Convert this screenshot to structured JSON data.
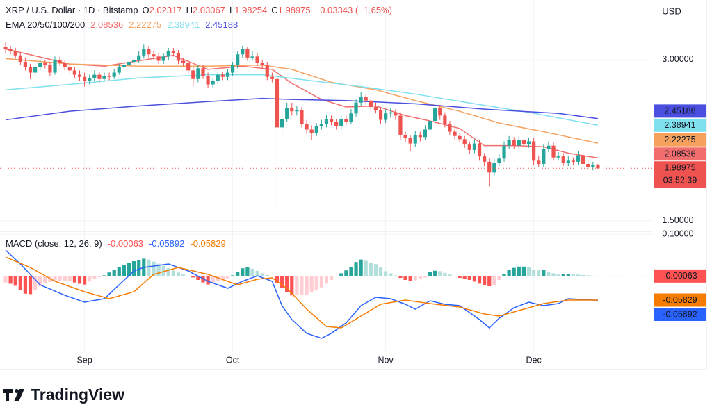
{
  "header": {
    "symbol": "XRP / U.S. Dollar · 1D · Bitstamp",
    "ohlc_labels": [
      "O",
      "H",
      "L",
      "C"
    ],
    "change": "−0.03343 (−1.65%)",
    "ema_label": "EMA 20/50/100/200",
    "macd_label": "MACD (close, 12, 26, 9)"
  },
  "currency": "USD",
  "countdown": "03:52:39",
  "brand": "TradingView",
  "chart_data": [
    {
      "type": "candlestick",
      "up_color": "#26a69a",
      "down_color": "#ef5350",
      "grid": true,
      "xlim": [
        -1.13,
        131
      ],
      "xticks": [
        {
          "value": 16,
          "label": "Sep"
        },
        {
          "value": 46,
          "label": "Oct"
        },
        {
          "value": 77,
          "label": "Nov"
        },
        {
          "value": 107,
          "label": "Dec"
        }
      ],
      "ylim": [
        1.422,
        3.504
      ],
      "yticks": [
        {
          "value": 3.0,
          "label": "3.00000"
        },
        {
          "value": 1.5,
          "label": "1.50000"
        }
      ],
      "candles": [
        [
          3.12,
          3.16,
          3.06,
          3.1
        ],
        [
          3.1,
          3.13,
          3.05,
          3.08
        ],
        [
          3.08,
          3.11,
          3.01,
          3.04
        ],
        [
          3.04,
          3.07,
          2.95,
          2.98
        ],
        [
          2.98,
          3.02,
          2.9,
          2.93
        ],
        [
          2.93,
          2.96,
          2.82,
          2.88
        ],
        [
          2.88,
          2.96,
          2.85,
          2.93
        ],
        [
          2.93,
          3.0,
          2.9,
          2.97
        ],
        [
          2.97,
          3.0,
          2.92,
          2.95
        ],
        [
          2.95,
          2.98,
          2.85,
          2.88
        ],
        [
          2.88,
          3.03,
          2.86,
          3.0
        ],
        [
          3.0,
          3.03,
          2.94,
          2.97
        ],
        [
          2.97,
          3.0,
          2.9,
          2.93
        ],
        [
          2.93,
          2.96,
          2.87,
          2.9
        ],
        [
          2.9,
          2.93,
          2.83,
          2.86
        ],
        [
          2.86,
          2.9,
          2.8,
          2.84
        ],
        [
          2.84,
          2.88,
          2.75,
          2.8
        ],
        [
          2.8,
          2.86,
          2.77,
          2.83
        ],
        [
          2.83,
          2.9,
          2.8,
          2.86
        ],
        [
          2.86,
          2.89,
          2.79,
          2.82
        ],
        [
          2.82,
          2.88,
          2.8,
          2.85
        ],
        [
          2.85,
          2.88,
          2.81,
          2.84
        ],
        [
          2.84,
          2.91,
          2.82,
          2.88
        ],
        [
          2.88,
          2.96,
          2.86,
          2.93
        ],
        [
          2.93,
          2.98,
          2.9,
          2.95
        ],
        [
          2.95,
          3.01,
          2.92,
          2.98
        ],
        [
          2.98,
          3.03,
          2.95,
          3.0
        ],
        [
          3.0,
          3.08,
          2.97,
          3.04
        ],
        [
          3.04,
          3.14,
          3.01,
          3.1
        ],
        [
          3.1,
          3.13,
          3.02,
          3.05
        ],
        [
          3.05,
          3.08,
          3.0,
          3.03
        ],
        [
          3.03,
          3.06,
          2.96,
          2.99
        ],
        [
          2.99,
          3.06,
          2.96,
          3.03
        ],
        [
          3.03,
          3.11,
          3.0,
          3.08
        ],
        [
          3.08,
          3.11,
          3.03,
          3.06
        ],
        [
          3.06,
          3.09,
          2.96,
          2.99
        ],
        [
          2.99,
          3.02,
          2.94,
          2.97
        ],
        [
          2.97,
          3.0,
          2.87,
          2.9
        ],
        [
          2.9,
          2.93,
          2.75,
          2.82
        ],
        [
          2.82,
          2.95,
          2.79,
          2.92
        ],
        [
          2.92,
          2.95,
          2.82,
          2.85
        ],
        [
          2.85,
          2.88,
          2.74,
          2.77
        ],
        [
          2.77,
          2.83,
          2.74,
          2.8
        ],
        [
          2.8,
          2.89,
          2.77,
          2.86
        ],
        [
          2.86,
          2.89,
          2.81,
          2.84
        ],
        [
          2.84,
          2.91,
          2.81,
          2.88
        ],
        [
          2.88,
          2.98,
          2.85,
          2.95
        ],
        [
          2.95,
          3.08,
          2.92,
          3.05
        ],
        [
          3.05,
          3.13,
          3.02,
          3.1
        ],
        [
          3.1,
          3.12,
          2.99,
          3.02
        ],
        [
          3.02,
          3.08,
          2.99,
          3.03
        ],
        [
          3.03,
          3.06,
          2.94,
          2.97
        ],
        [
          2.97,
          3.0,
          2.92,
          2.95
        ],
        [
          2.95,
          2.98,
          2.81,
          2.84
        ],
        [
          2.84,
          2.88,
          2.79,
          2.82
        ],
        [
          2.82,
          2.85,
          1.58,
          2.37
        ],
        [
          2.37,
          2.5,
          2.3,
          2.45
        ],
        [
          2.45,
          2.6,
          2.42,
          2.55
        ],
        [
          2.55,
          2.6,
          2.48,
          2.52
        ],
        [
          2.52,
          2.57,
          2.48,
          2.53
        ],
        [
          2.53,
          2.56,
          2.37,
          2.4
        ],
        [
          2.4,
          2.44,
          2.31,
          2.35
        ],
        [
          2.35,
          2.39,
          2.25,
          2.32
        ],
        [
          2.32,
          2.41,
          2.29,
          2.38
        ],
        [
          2.38,
          2.44,
          2.35,
          2.4
        ],
        [
          2.4,
          2.49,
          2.37,
          2.45
        ],
        [
          2.45,
          2.48,
          2.39,
          2.42
        ],
        [
          2.42,
          2.45,
          2.35,
          2.38
        ],
        [
          2.38,
          2.49,
          2.35,
          2.45
        ],
        [
          2.45,
          2.48,
          2.39,
          2.42
        ],
        [
          2.42,
          2.54,
          2.4,
          2.5
        ],
        [
          2.5,
          2.63,
          2.47,
          2.6
        ],
        [
          2.6,
          2.7,
          2.57,
          2.65
        ],
        [
          2.65,
          2.68,
          2.58,
          2.62
        ],
        [
          2.62,
          2.65,
          2.52,
          2.56
        ],
        [
          2.56,
          2.6,
          2.5,
          2.53
        ],
        [
          2.53,
          2.56,
          2.4,
          2.44
        ],
        [
          2.44,
          2.54,
          2.41,
          2.5
        ],
        [
          2.5,
          2.55,
          2.46,
          2.51
        ],
        [
          2.51,
          2.54,
          2.44,
          2.48
        ],
        [
          2.48,
          2.51,
          2.26,
          2.3
        ],
        [
          2.3,
          2.33,
          2.23,
          2.27
        ],
        [
          2.27,
          2.3,
          2.15,
          2.22
        ],
        [
          2.22,
          2.34,
          2.19,
          2.3
        ],
        [
          2.3,
          2.33,
          2.24,
          2.28
        ],
        [
          2.28,
          2.39,
          2.25,
          2.35
        ],
        [
          2.35,
          2.47,
          2.32,
          2.43
        ],
        [
          2.43,
          2.59,
          2.4,
          2.55
        ],
        [
          2.55,
          2.58,
          2.44,
          2.48
        ],
        [
          2.48,
          2.51,
          2.37,
          2.4
        ],
        [
          2.4,
          2.43,
          2.3,
          2.33
        ],
        [
          2.33,
          2.36,
          2.26,
          2.29
        ],
        [
          2.29,
          2.32,
          2.23,
          2.26
        ],
        [
          2.26,
          2.29,
          2.18,
          2.21
        ],
        [
          2.21,
          2.24,
          2.12,
          2.16
        ],
        [
          2.16,
          2.26,
          2.13,
          2.22
        ],
        [
          2.22,
          2.25,
          2.06,
          2.1
        ],
        [
          2.1,
          2.13,
          2.01,
          2.05
        ],
        [
          2.05,
          2.08,
          1.82,
          1.95
        ],
        [
          1.95,
          2.08,
          1.92,
          2.04
        ],
        [
          2.04,
          2.12,
          2.01,
          2.08
        ],
        [
          2.08,
          2.24,
          2.05,
          2.2
        ],
        [
          2.2,
          2.29,
          2.17,
          2.25
        ],
        [
          2.25,
          2.28,
          2.17,
          2.2
        ],
        [
          2.2,
          2.29,
          2.17,
          2.25
        ],
        [
          2.25,
          2.28,
          2.18,
          2.21
        ],
        [
          2.21,
          2.27,
          2.18,
          2.24
        ],
        [
          2.24,
          2.27,
          2.02,
          2.06
        ],
        [
          2.06,
          2.1,
          2.0,
          2.03
        ],
        [
          2.03,
          2.21,
          2.0,
          2.17
        ],
        [
          2.17,
          2.24,
          2.14,
          2.2
        ],
        [
          2.2,
          2.23,
          2.06,
          2.09
        ],
        [
          2.09,
          2.14,
          2.06,
          2.1
        ],
        [
          2.1,
          2.13,
          2.01,
          2.04
        ],
        [
          2.04,
          2.1,
          2.01,
          2.06
        ],
        [
          2.06,
          2.09,
          2.02,
          2.05
        ],
        [
          2.05,
          2.15,
          2.02,
          2.11
        ],
        [
          2.11,
          2.14,
          2.0,
          2.03
        ],
        [
          2.03,
          2.06,
          1.97,
          2.0
        ],
        [
          2.0,
          2.05,
          1.97,
          2.02
        ],
        [
          2.02317,
          2.03067,
          1.98254,
          1.98975
        ]
      ],
      "series": [
        {
          "color": "#f26d6d",
          "label_text": "#ffffff",
          "x": [
            0,
            13,
            20,
            27,
            34,
            41,
            48,
            54,
            58,
            64,
            69,
            75,
            81,
            86,
            92,
            97,
            103,
            109,
            114,
            120
          ],
          "values": [
            3.1,
            2.96,
            2.94,
            2.99,
            3.04,
            2.91,
            2.94,
            2.91,
            2.78,
            2.63,
            2.56,
            2.57,
            2.48,
            2.43,
            2.36,
            2.2,
            2.2,
            2.19,
            2.13,
            2.08536
          ]
        },
        {
          "color": "#f7a15e",
          "label_text": "#ffffff",
          "x": [
            0,
            13,
            27,
            41,
            52,
            58,
            66,
            75,
            83,
            92,
            100,
            109,
            120
          ],
          "values": [
            3.01,
            2.96,
            2.94,
            2.94,
            2.95,
            2.91,
            2.79,
            2.72,
            2.62,
            2.52,
            2.41,
            2.33,
            2.22275
          ]
        },
        {
          "color": "#80e1ee",
          "label_text": "#131722",
          "x": [
            0,
            13,
            27,
            41,
            52,
            61,
            72,
            83,
            95,
            106,
            120
          ],
          "values": [
            2.72,
            2.77,
            2.83,
            2.86,
            2.86,
            2.81,
            2.75,
            2.68,
            2.59,
            2.51,
            2.38941
          ]
        },
        {
          "color": "#4b4fe0",
          "label_text": "#ffffff",
          "x": [
            0,
            13,
            27,
            41,
            52,
            58,
            69,
            83,
            97,
            112,
            120
          ],
          "values": [
            2.44,
            2.52,
            2.57,
            2.61,
            2.64,
            2.63,
            2.62,
            2.59,
            2.54,
            2.5,
            2.45188
          ]
        }
      ]
    },
    {
      "type": "macd",
      "ylim": [
        -0.18,
        0.1067
      ],
      "yticks": [
        {
          "value": 0.1,
          "label": "0.10000"
        }
      ],
      "histogram": {
        "colors": {
          "rising_positive": "#26a69a",
          "falling_positive": "#b2dfdb",
          "falling_negative": "#ff5252",
          "rising_negative": "#ffcdd2"
        },
        "values": [
          -0.016,
          -0.019,
          -0.024,
          -0.035,
          -0.043,
          -0.044,
          -0.035,
          -0.025,
          -0.018,
          -0.015,
          -0.013,
          -0.013,
          -0.013,
          -0.013,
          -0.016,
          -0.019,
          -0.021,
          -0.014,
          -0.007,
          -0.003,
          0.001,
          0.008,
          0.015,
          0.021,
          0.026,
          0.031,
          0.035,
          0.037,
          0.041,
          0.039,
          0.034,
          0.029,
          0.024,
          0.018,
          0.013,
          0.008,
          0.003,
          -0.001,
          -0.004,
          -0.01,
          -0.016,
          -0.021,
          -0.017,
          -0.012,
          -0.009,
          -0.006,
          0.001,
          0.01,
          0.018,
          0.02,
          0.017,
          0.012,
          0.006,
          0.002,
          -0.001,
          -0.018,
          -0.03,
          -0.039,
          -0.047,
          -0.047,
          -0.047,
          -0.046,
          -0.04,
          -0.034,
          -0.028,
          -0.019,
          -0.01,
          -0.002,
          0.006,
          0.013,
          0.02,
          0.033,
          0.039,
          0.036,
          0.031,
          0.028,
          0.021,
          0.011,
          0.006,
          0.001,
          -0.005,
          -0.01,
          -0.013,
          -0.011,
          -0.008,
          -0.004,
          0.009,
          0.012,
          0.011,
          0.007,
          0.003,
          -0.001,
          -0.005,
          -0.008,
          -0.01,
          -0.014,
          -0.019,
          -0.022,
          -0.025,
          -0.022,
          -0.01,
          0.005,
          0.014,
          0.019,
          0.022,
          0.022,
          0.02,
          0.014,
          0.013,
          0.014,
          0.009,
          0.006,
          0.003,
          0.004,
          0.005,
          0.004,
          0.003,
          0.002,
          0.001,
          0.0005,
          -0.00063
        ]
      },
      "series": [
        {
          "color": "#2962ff",
          "x": [
            0,
            3,
            7,
            12,
            16,
            20,
            23,
            26,
            28,
            33,
            37,
            41,
            45,
            48,
            51,
            54,
            56,
            58,
            61,
            64,
            66,
            69,
            72,
            75,
            78,
            81,
            83,
            86,
            89,
            92,
            96,
            98,
            100,
            103,
            106,
            109,
            112,
            114,
            120
          ],
          "values": [
            0.0617,
            0.0283,
            -0.0217,
            -0.0467,
            -0.0633,
            -0.055,
            -0.0217,
            0.0117,
            0.02,
            0.0283,
            0.0117,
            -0.0133,
            -0.03,
            -0.0133,
            0,
            -0.0133,
            -0.0717,
            -0.105,
            -0.138,
            -0.15,
            -0.138,
            -0.113,
            -0.0717,
            -0.0517,
            -0.055,
            -0.0683,
            -0.08,
            -0.06,
            -0.0683,
            -0.0717,
            -0.105,
            -0.125,
            -0.102,
            -0.0767,
            -0.0633,
            -0.0717,
            -0.0667,
            -0.055,
            -0.05892
          ]
        },
        {
          "color": "#f57c00",
          "x": [
            0,
            5,
            10,
            16,
            21,
            26,
            30,
            35,
            41,
            47,
            51,
            54,
            57,
            61,
            65,
            68,
            72,
            76,
            81,
            86,
            92,
            97,
            100,
            105,
            109,
            114,
            120
          ],
          "values": [
            0.045,
            0.02,
            -0.0133,
            -0.0383,
            -0.055,
            -0.0383,
            0.0033,
            0.02,
            0.0033,
            -0.0217,
            -0.0083,
            -0.005,
            -0.03,
            -0.08,
            -0.1217,
            -0.125,
            -0.0967,
            -0.0683,
            -0.0583,
            -0.0667,
            -0.075,
            -0.0917,
            -0.0967,
            -0.08,
            -0.0667,
            -0.0583,
            -0.05829
          ]
        }
      ]
    }
  ]
}
